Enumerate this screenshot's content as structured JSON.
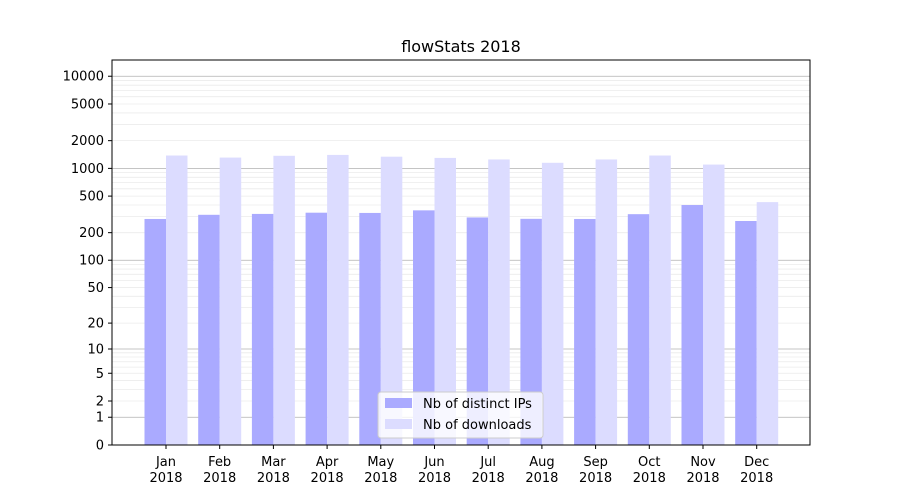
{
  "chart_data": {
    "type": "bar",
    "title": "flowStats 2018",
    "xlabel": "",
    "ylabel": "",
    "yscale": "symlog",
    "ylim": [
      0,
      15000
    ],
    "categories": [
      [
        "Jan",
        "2018"
      ],
      [
        "Feb",
        "2018"
      ],
      [
        "Mar",
        "2018"
      ],
      [
        "Apr",
        "2018"
      ],
      [
        "May",
        "2018"
      ],
      [
        "Jun",
        "2018"
      ],
      [
        "Jul",
        "2018"
      ],
      [
        "Aug",
        "2018"
      ],
      [
        "Sep",
        "2018"
      ],
      [
        "Oct",
        "2018"
      ],
      [
        "Nov",
        "2018"
      ],
      [
        "Dec",
        "2018"
      ]
    ],
    "yticks": [
      0,
      1,
      2,
      5,
      10,
      20,
      50,
      100,
      200,
      500,
      1000,
      2000,
      5000,
      10000
    ],
    "ytick_labels": [
      "0",
      "1",
      "2",
      "5",
      "10",
      "20",
      "50",
      "100",
      "200",
      "500",
      "1000",
      "2000",
      "5000",
      "10000"
    ],
    "grid": true,
    "legend_position": "lower-center",
    "series": [
      {
        "name": "Nb of distinct IPs",
        "color": "#aaaaff",
        "values": [
          282,
          313,
          320,
          330,
          328,
          350,
          293,
          283,
          282,
          318,
          400,
          268
        ]
      },
      {
        "name": "Nb of downloads",
        "color": "#dcdcff",
        "values": [
          1380,
          1310,
          1370,
          1400,
          1340,
          1300,
          1250,
          1150,
          1250,
          1380,
          1100,
          430
        ]
      }
    ]
  }
}
